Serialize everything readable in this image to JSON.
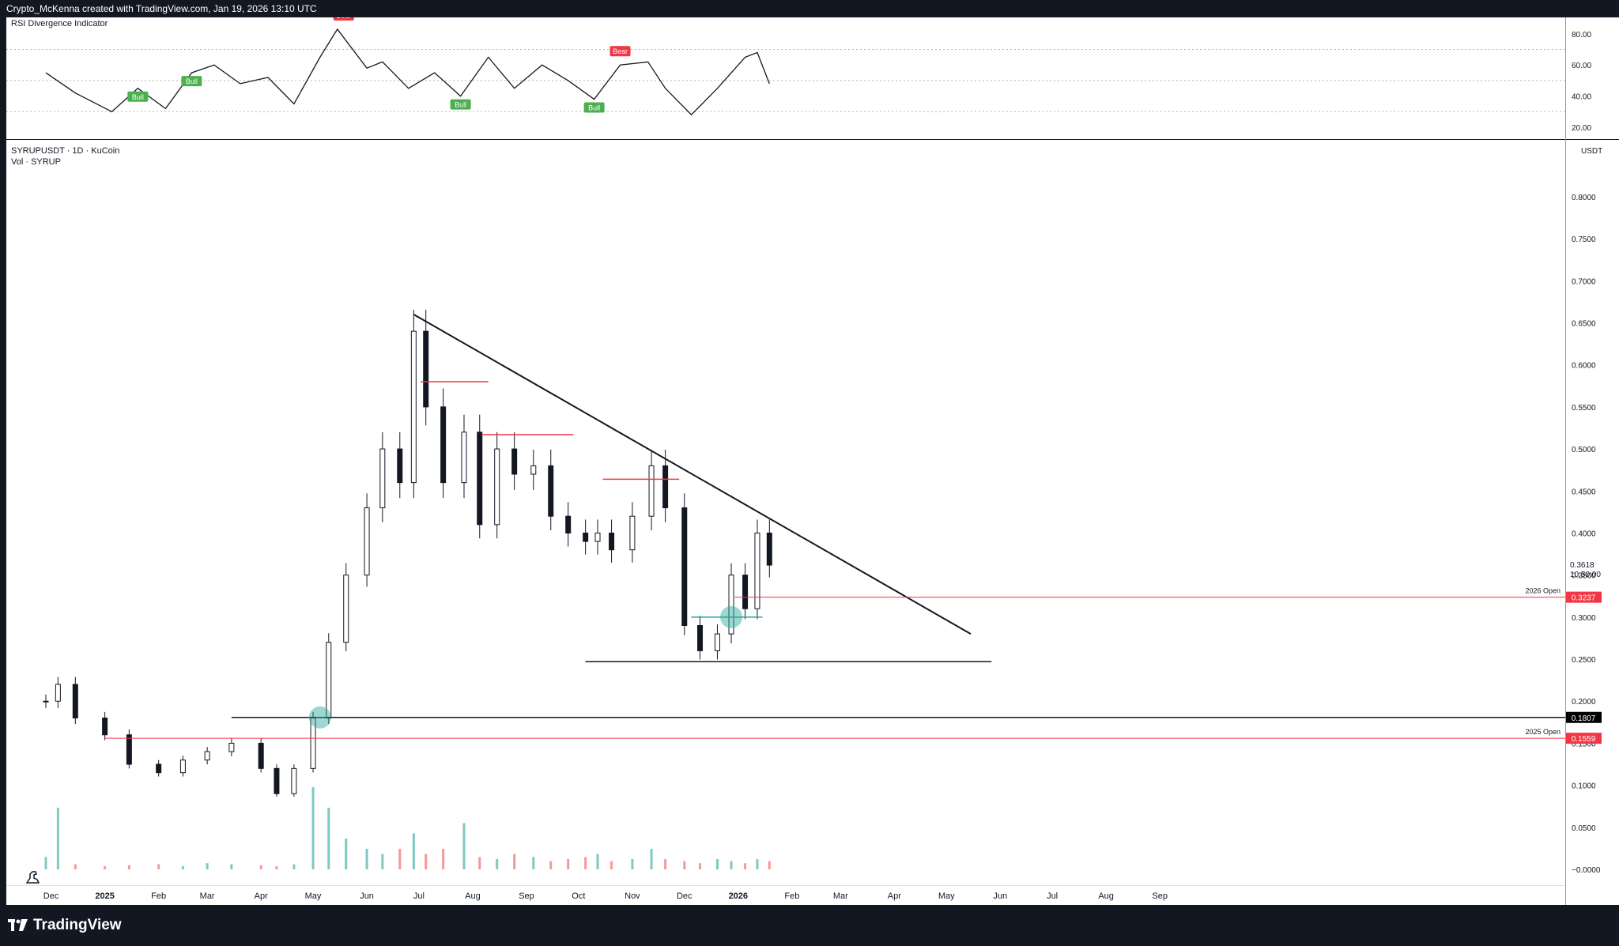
{
  "header": {
    "attribution": "Crypto_McKenna created with TradingView.com, Jan 19, 2026 13:10 UTC"
  },
  "rsi_panel": {
    "title": "RSI Divergence Indicator",
    "axis_ticks": [
      "80.00",
      "60.00",
      "40.00",
      "20.00"
    ],
    "signals": [
      {
        "label": "Bull",
        "kind": "bull"
      },
      {
        "label": "Bull",
        "kind": "bull"
      },
      {
        "label": "Bear",
        "kind": "bear"
      },
      {
        "label": "Bear",
        "kind": "bear"
      },
      {
        "label": "Bull",
        "kind": "bull"
      },
      {
        "label": "Bull",
        "kind": "bull"
      },
      {
        "label": "Bear",
        "kind": "bear"
      }
    ]
  },
  "main_panel": {
    "symbol_line": "SYRUPUSDT · 1D · KuCoin",
    "volume_line": "Vol · SYRUP",
    "currency": "USDT",
    "price_ticks": [
      "0.8000",
      "0.7500",
      "0.7000",
      "0.6500",
      "0.6000",
      "0.5500",
      "0.5000",
      "0.4500",
      "0.4000",
      "0.3500",
      "0.3000",
      "0.2500",
      "0.2000",
      "0.1500",
      "0.1000",
      "0.0500",
      "−0.0000"
    ],
    "last_price": "0.3618",
    "countdown": "10:50:00",
    "level_tags": [
      {
        "text": "0.3237",
        "caption": "2026 Open",
        "color": "#f23645"
      },
      {
        "text": "0.1807",
        "caption": "",
        "color": "#000000"
      },
      {
        "text": "0.1559",
        "caption": "2025 Open",
        "color": "#f23645"
      }
    ]
  },
  "time_axis": {
    "labels": [
      "Dec",
      "2025",
      "Feb",
      "Mar",
      "Apr",
      "May",
      "Jun",
      "Jul",
      "Aug",
      "Sep",
      "Oct",
      "Nov",
      "Dec",
      "2026",
      "Feb",
      "Mar",
      "Apr",
      "May",
      "Jun",
      "Jul",
      "Aug",
      "Sep"
    ]
  },
  "footer": {
    "brand": "TradingView"
  },
  "colors": {
    "background": "#131722",
    "bull": "#4caf50",
    "bear": "#f23645",
    "volume_up": "#26a69a",
    "volume_down": "#ef5350",
    "highlight_circle": "#26a69a"
  },
  "chart_data": [
    {
      "type": "line",
      "title": "RSI Divergence Indicator",
      "ylim": [
        20,
        85
      ],
      "x": [
        "2024-11-28",
        "2024-12-15",
        "2025-01-05",
        "2025-01-20",
        "2025-02-05",
        "2025-02-20",
        "2025-03-05",
        "2025-03-20",
        "2025-04-05",
        "2025-04-20",
        "2025-05-05",
        "2025-05-15",
        "2025-06-01",
        "2025-06-10",
        "2025-06-25",
        "2025-07-10",
        "2025-07-25",
        "2025-08-10",
        "2025-08-25",
        "2025-09-10",
        "2025-09-25",
        "2025-10-10",
        "2025-10-25",
        "2025-11-10",
        "2025-11-20",
        "2025-12-05",
        "2025-12-20",
        "2026-01-05",
        "2026-01-12",
        "2026-01-19"
      ],
      "series": [
        {
          "values": [
            55,
            42,
            30,
            45,
            32,
            55,
            60,
            48,
            52,
            35,
            65,
            83,
            58,
            62,
            45,
            55,
            40,
            65,
            45,
            60,
            50,
            38,
            60,
            62,
            45,
            28,
            45,
            65,
            68,
            48
          ]
        }
      ]
    },
    {
      "type": "candlestick",
      "currency": "USDT",
      "ylim": [
        0,
        0.83
      ],
      "x": [
        "2024-11-28",
        "2024-12-05",
        "2024-12-15",
        "2025-01-01",
        "2025-01-15",
        "2025-02-01",
        "2025-02-15",
        "2025-03-01",
        "2025-03-15",
        "2025-04-01",
        "2025-04-10",
        "2025-04-20",
        "2025-05-01",
        "2025-05-10",
        "2025-05-20",
        "2025-06-01",
        "2025-06-10",
        "2025-06-20",
        "2025-06-28",
        "2025-07-05",
        "2025-07-15",
        "2025-07-27",
        "2025-08-05",
        "2025-08-15",
        "2025-08-25",
        "2025-09-05",
        "2025-09-15",
        "2025-09-25",
        "2025-10-05",
        "2025-10-12",
        "2025-10-20",
        "2025-11-01",
        "2025-11-12",
        "2025-11-20",
        "2025-12-01",
        "2025-12-10",
        "2025-12-20",
        "2025-12-28",
        "2026-01-05",
        "2026-01-12",
        "2026-01-19"
      ],
      "close": [
        0.2,
        0.22,
        0.18,
        0.16,
        0.125,
        0.115,
        0.13,
        0.14,
        0.15,
        0.12,
        0.09,
        0.12,
        0.18,
        0.27,
        0.35,
        0.43,
        0.5,
        0.46,
        0.64,
        0.55,
        0.46,
        0.52,
        0.41,
        0.5,
        0.47,
        0.48,
        0.42,
        0.4,
        0.39,
        0.4,
        0.38,
        0.42,
        0.48,
        0.43,
        0.29,
        0.26,
        0.28,
        0.35,
        0.31,
        0.4,
        0.3618
      ],
      "volume": [
        0.12,
        0.6,
        0.05,
        0.03,
        0.04,
        0.05,
        0.03,
        0.06,
        0.05,
        0.04,
        0.03,
        0.05,
        0.8,
        0.6,
        0.3,
        0.2,
        0.15,
        0.2,
        0.35,
        0.15,
        0.2,
        0.45,
        0.12,
        0.1,
        0.15,
        0.12,
        0.08,
        0.1,
        0.12,
        0.15,
        0.08,
        0.1,
        0.2,
        0.1,
        0.08,
        0.06,
        0.1,
        0.08,
        0.06,
        0.1,
        0.08
      ],
      "annotations": [
        {
          "type": "descending-trendline",
          "from": [
            "2025-06-28",
            0.66
          ],
          "to": [
            "2026-05-15",
            0.28
          ]
        },
        {
          "type": "horizontal-support",
          "value": 0.247
        },
        {
          "type": "horizontal-level",
          "value": 0.1807
        },
        {
          "type": "horizontal-level",
          "value": 0.1559,
          "label": "2025 Open"
        },
        {
          "type": "horizontal-level",
          "value": 0.3237,
          "label": "2026 Open"
        },
        {
          "type": "resistance-segment",
          "value": 0.58
        },
        {
          "type": "resistance-segment",
          "value": 0.517
        },
        {
          "type": "resistance-segment",
          "value": 0.464
        },
        {
          "type": "support-segment",
          "value": 0.3
        }
      ]
    }
  ]
}
